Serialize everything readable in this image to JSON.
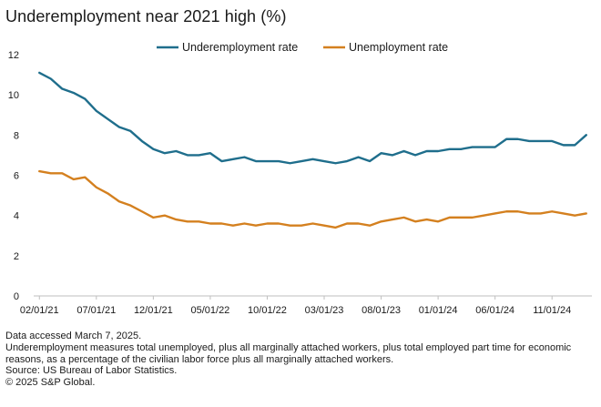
{
  "title": "Underemployment near 2021 high (%)",
  "footnotes": {
    "accessed": "Data accessed March 7, 2025.",
    "definition": "Underemployment measures total unemployed, plus all marginally attached workers, plus total employed part time for economic reasons, as a percentage of the civilian labor force plus all marginally attached workers.",
    "source": "Source: US Bureau of Labor Statistics.",
    "copyright": "© 2025 S&P Global."
  },
  "chart_data": {
    "type": "line",
    "ylim": [
      0,
      12
    ],
    "yticks": [
      0,
      2,
      4,
      6,
      8,
      10,
      12
    ],
    "xticks": [
      "02/01/21",
      "07/01/21",
      "12/01/21",
      "05/01/22",
      "10/01/22",
      "03/01/23",
      "08/01/23",
      "01/01/24",
      "06/01/24",
      "11/01/24"
    ],
    "grid": false,
    "legend_position": "top-center",
    "x": [
      "02/01/21",
      "03/01/21",
      "04/01/21",
      "05/01/21",
      "06/01/21",
      "07/01/21",
      "08/01/21",
      "09/01/21",
      "10/01/21",
      "11/01/21",
      "12/01/21",
      "01/01/22",
      "02/01/22",
      "03/01/22",
      "04/01/22",
      "05/01/22",
      "06/01/22",
      "07/01/22",
      "08/01/22",
      "09/01/22",
      "10/01/22",
      "11/01/22",
      "12/01/22",
      "01/01/23",
      "02/01/23",
      "03/01/23",
      "04/01/23",
      "05/01/23",
      "06/01/23",
      "07/01/23",
      "08/01/23",
      "09/01/23",
      "10/01/23",
      "11/01/23",
      "12/01/23",
      "01/01/24",
      "02/01/24",
      "03/01/24",
      "04/01/24",
      "05/01/24",
      "06/01/24",
      "07/01/24",
      "08/01/24",
      "09/01/24",
      "10/01/24",
      "11/01/24",
      "12/01/24",
      "01/01/25",
      "02/01/25"
    ],
    "series": [
      {
        "name": "Underemployment rate",
        "color": "#1f6e8c",
        "values": [
          11.1,
          10.8,
          10.3,
          10.1,
          9.8,
          9.2,
          8.8,
          8.4,
          8.2,
          7.7,
          7.3,
          7.1,
          7.2,
          7.0,
          7.0,
          7.1,
          6.7,
          6.8,
          6.9,
          6.7,
          6.7,
          6.7,
          6.6,
          6.7,
          6.8,
          6.7,
          6.6,
          6.7,
          6.9,
          6.7,
          7.1,
          7.0,
          7.2,
          7.0,
          7.2,
          7.2,
          7.3,
          7.3,
          7.4,
          7.4,
          7.4,
          7.8,
          7.8,
          7.7,
          7.7,
          7.7,
          7.5,
          7.5,
          8.0
        ]
      },
      {
        "name": "Unemployment rate",
        "color": "#d4801f",
        "values": [
          6.2,
          6.1,
          6.1,
          5.8,
          5.9,
          5.4,
          5.1,
          4.7,
          4.5,
          4.2,
          3.9,
          4.0,
          3.8,
          3.7,
          3.7,
          3.6,
          3.6,
          3.5,
          3.6,
          3.5,
          3.6,
          3.6,
          3.5,
          3.5,
          3.6,
          3.5,
          3.4,
          3.6,
          3.6,
          3.5,
          3.7,
          3.8,
          3.9,
          3.7,
          3.8,
          3.7,
          3.9,
          3.9,
          3.9,
          4.0,
          4.1,
          4.2,
          4.2,
          4.1,
          4.1,
          4.2,
          4.1,
          4.0,
          4.1
        ]
      }
    ]
  }
}
